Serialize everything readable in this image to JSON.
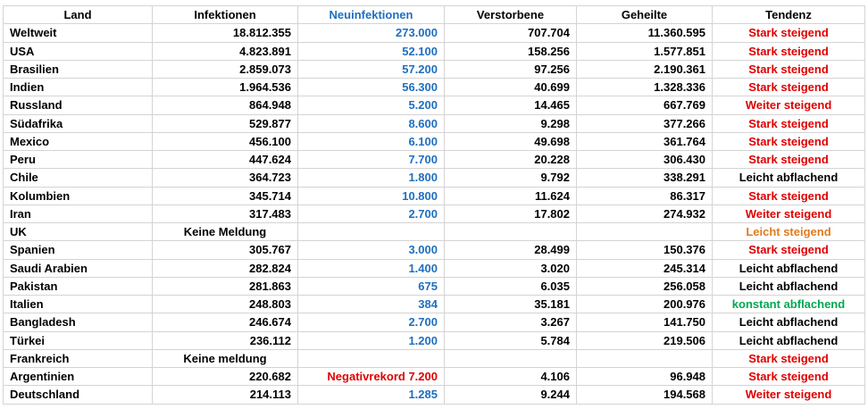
{
  "table": {
    "columns": [
      {
        "label": "Land",
        "color": "#000000"
      },
      {
        "label": "Infektionen",
        "color": "#000000"
      },
      {
        "label": "Neuinfektionen",
        "color": "#1f6fbf"
      },
      {
        "label": "Verstorbene",
        "color": "#000000"
      },
      {
        "label": "Geheilte",
        "color": "#000000"
      },
      {
        "label": "Tendenz",
        "color": "#000000"
      }
    ],
    "rows": [
      {
        "cells": [
          "Weltweit",
          "18.812.355",
          "273.000",
          "707.704",
          "11.360.595",
          "Stark steigend"
        ],
        "neu_color": "#1f6fbf",
        "tendency_color": "#e00000"
      },
      {
        "cells": [
          "USA",
          "4.823.891",
          "52.100",
          "158.256",
          "1.577.851",
          "Stark steigend"
        ],
        "neu_color": "#1f6fbf",
        "tendency_color": "#e00000"
      },
      {
        "cells": [
          "Brasilien",
          "2.859.073",
          "57.200",
          "97.256",
          "2.190.361",
          "Stark steigend"
        ],
        "neu_color": "#1f6fbf",
        "tendency_color": "#e00000"
      },
      {
        "cells": [
          "Indien",
          "1.964.536",
          "56.300",
          "40.699",
          "1.328.336",
          "Stark steigend"
        ],
        "neu_color": "#1f6fbf",
        "tendency_color": "#e00000"
      },
      {
        "cells": [
          "Russland",
          "864.948",
          "5.200",
          "14.465",
          "667.769",
          "Weiter steigend"
        ],
        "neu_color": "#1f6fbf",
        "tendency_color": "#e00000"
      },
      {
        "cells": [
          "Südafrika",
          "529.877",
          "8.600",
          "9.298",
          "377.266",
          "Stark steigend"
        ],
        "neu_color": "#1f6fbf",
        "tendency_color": "#e00000"
      },
      {
        "cells": [
          "Mexico",
          "456.100",
          "6.100",
          "49.698",
          "361.764",
          "Stark steigend"
        ],
        "neu_color": "#1f6fbf",
        "tendency_color": "#e00000"
      },
      {
        "cells": [
          "Peru",
          "447.624",
          "7.700",
          "20.228",
          "306.430",
          "Stark steigend"
        ],
        "neu_color": "#1f6fbf",
        "tendency_color": "#e00000"
      },
      {
        "cells": [
          "Chile",
          "364.723",
          "1.800",
          "9.792",
          "338.291",
          "Leicht abflachend"
        ],
        "neu_color": "#1f6fbf",
        "tendency_color": "#000000"
      },
      {
        "cells": [
          "Kolumbien",
          "345.714",
          "10.800",
          "11.624",
          "86.317",
          "Stark steigend"
        ],
        "neu_color": "#1f6fbf",
        "tendency_color": "#e00000"
      },
      {
        "cells": [
          "Iran",
          "317.483",
          "2.700",
          "17.802",
          "274.932",
          "Weiter steigend"
        ],
        "neu_color": "#1f6fbf",
        "tendency_color": "#e00000"
      },
      {
        "cells": [
          "UK",
          "Keine Meldung",
          null,
          null,
          null,
          "Leicht steigend"
        ],
        "neu_color": "#1f6fbf",
        "tendency_color": "#e07b1f"
      },
      {
        "cells": [
          "Spanien",
          "305.767",
          "3.000",
          "28.499",
          "150.376",
          "Stark steigend"
        ],
        "neu_color": "#1f6fbf",
        "tendency_color": "#e00000"
      },
      {
        "cells": [
          "Saudi Arabien",
          "282.824",
          "1.400",
          "3.020",
          "245.314",
          "Leicht abflachend"
        ],
        "neu_color": "#1f6fbf",
        "tendency_color": "#000000"
      },
      {
        "cells": [
          "Pakistan",
          "281.863",
          "675",
          "6.035",
          "256.058",
          "Leicht abflachend"
        ],
        "neu_color": "#1f6fbf",
        "tendency_color": "#000000"
      },
      {
        "cells": [
          "Italien",
          "248.803",
          "384",
          "35.181",
          "200.976",
          "konstant abflachend"
        ],
        "neu_color": "#1f6fbf",
        "tendency_color": "#00a84f"
      },
      {
        "cells": [
          "Bangladesh",
          "246.674",
          "2.700",
          "3.267",
          "141.750",
          "Leicht abflachend"
        ],
        "neu_color": "#1f6fbf",
        "tendency_color": "#000000"
      },
      {
        "cells": [
          "Türkei",
          "236.112",
          "1.200",
          "5.784",
          "219.506",
          "Leicht abflachend"
        ],
        "neu_color": "#1f6fbf",
        "tendency_color": "#000000"
      },
      {
        "cells": [
          "Frankreich",
          "Keine meldung",
          null,
          null,
          null,
          "Stark steigend"
        ],
        "neu_color": "#1f6fbf",
        "tendency_color": "#e00000"
      },
      {
        "cells": [
          "Argentinien",
          "220.682",
          "Negativrekord 7.200",
          "4.106",
          "96.948",
          "Stark steigend"
        ],
        "neu_color": "#e00000",
        "tendency_color": "#e00000"
      },
      {
        "cells": [
          "Deutschland",
          "214.113",
          "1.285",
          "9.244",
          "194.568",
          "Weiter steigend"
        ],
        "neu_color": "#1f6fbf",
        "tendency_color": "#e00000"
      }
    ]
  }
}
